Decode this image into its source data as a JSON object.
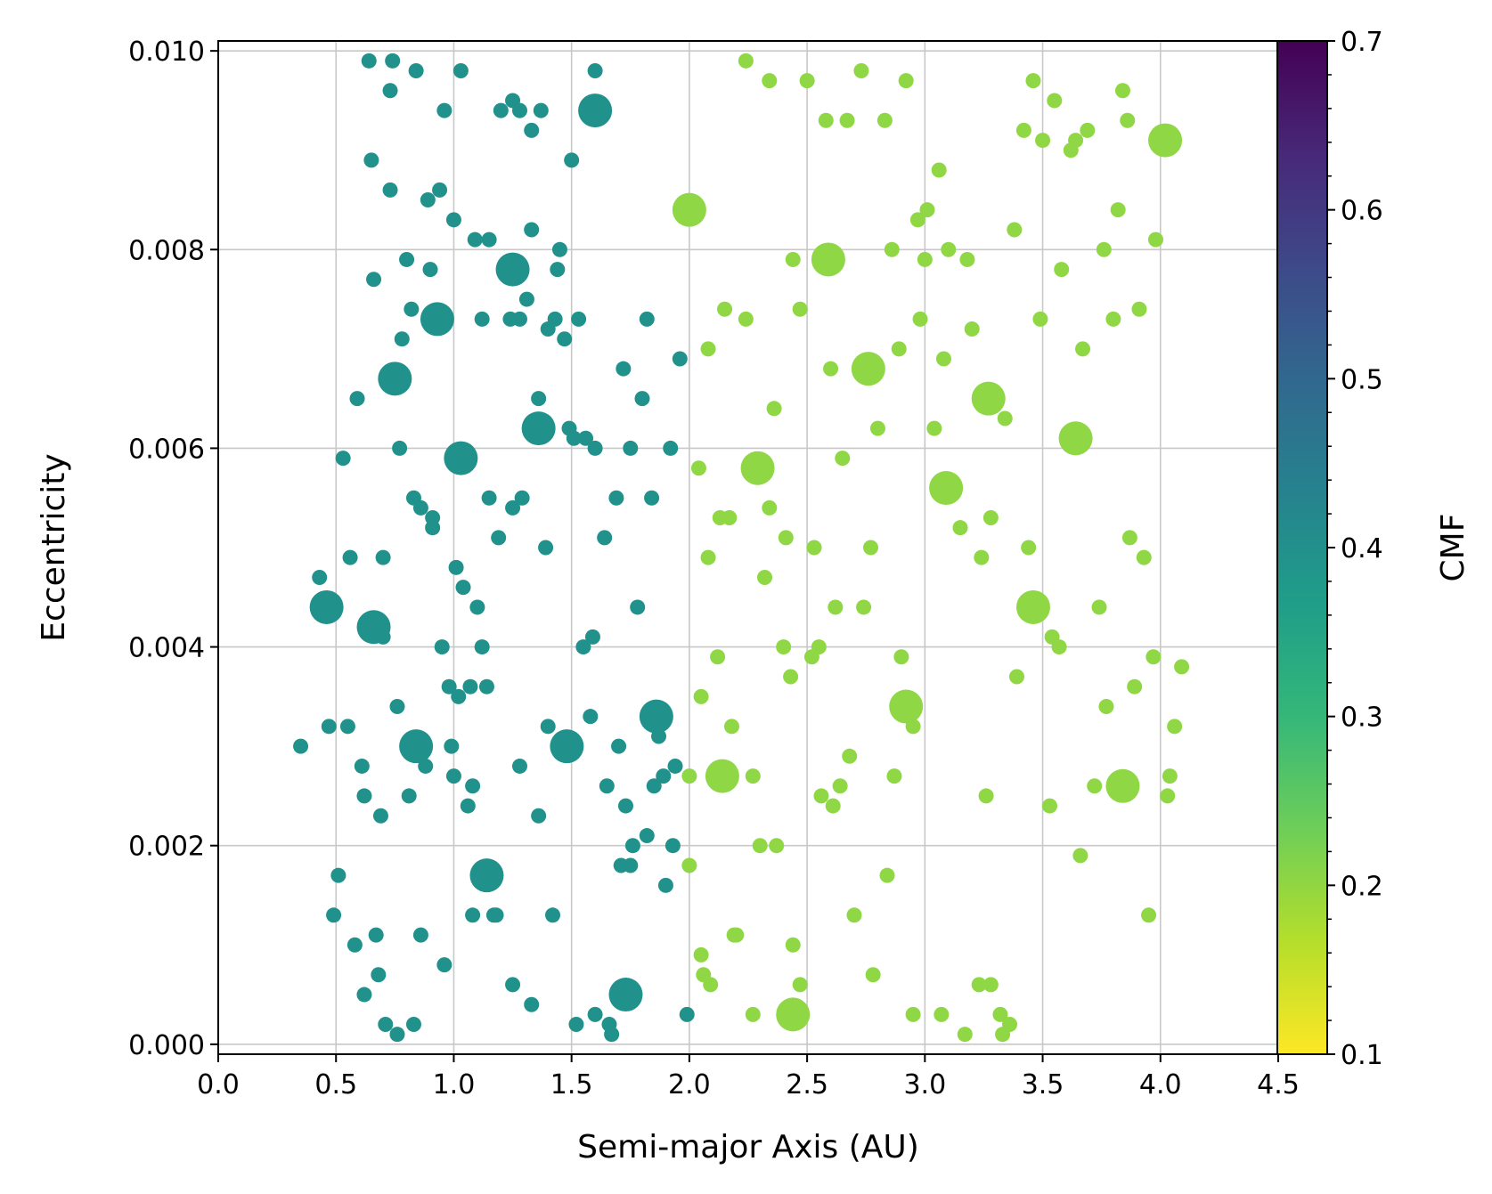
{
  "chart_data": {
    "type": "scatter",
    "title": "",
    "xlabel": "Semi-major Axis (AU)",
    "ylabel": "Eccentricity",
    "xlim": [
      0.0,
      4.5
    ],
    "ylim": [
      -0.0001,
      0.0101
    ],
    "xticks": [
      "0.0",
      "0.5",
      "1.0",
      "1.5",
      "2.0",
      "2.5",
      "3.0",
      "3.5",
      "4.0",
      "4.5"
    ],
    "yticks": [
      "0.000",
      "0.002",
      "0.004",
      "0.006",
      "0.008",
      "0.010"
    ],
    "grid": true,
    "colorbar": {
      "label": "CMF",
      "range": [
        0.1,
        0.7
      ],
      "ticks": [
        "0.1",
        "0.2",
        "0.3",
        "0.4",
        "0.5",
        "0.6",
        "0.7"
      ],
      "colormap": "viridis_r",
      "stops": [
        "#fde725",
        "#b5de2b",
        "#6ece58",
        "#35b779",
        "#1f9e89",
        "#26828e",
        "#31688e",
        "#3e4989",
        "#482878",
        "#440154"
      ]
    },
    "series": [
      {
        "cmf": 0.38,
        "color": "#21918c",
        "points_small": [
          [
            0.64,
            0.0099
          ],
          [
            0.74,
            0.0099
          ],
          [
            0.84,
            0.0098
          ],
          [
            1.03,
            0.0098
          ],
          [
            1.6,
            0.0098
          ],
          [
            0.73,
            0.0096
          ],
          [
            1.2,
            0.0094
          ],
          [
            1.25,
            0.0095
          ],
          [
            1.28,
            0.0094
          ],
          [
            0.96,
            0.0094
          ],
          [
            1.37,
            0.0094
          ],
          [
            1.33,
            0.0092
          ],
          [
            1.5,
            0.0089
          ],
          [
            0.65,
            0.0089
          ],
          [
            0.73,
            0.0086
          ],
          [
            0.94,
            0.0086
          ],
          [
            0.89,
            0.0085
          ],
          [
            1.0,
            0.0083
          ],
          [
            1.15,
            0.0081
          ],
          [
            1.33,
            0.0082
          ],
          [
            1.09,
            0.0081
          ],
          [
            1.45,
            0.008
          ],
          [
            0.8,
            0.0079
          ],
          [
            0.9,
            0.0078
          ],
          [
            1.44,
            0.0078
          ],
          [
            0.66,
            0.0077
          ],
          [
            1.31,
            0.0075
          ],
          [
            0.82,
            0.0074
          ],
          [
            1.12,
            0.0073
          ],
          [
            1.24,
            0.0073
          ],
          [
            1.28,
            0.0073
          ],
          [
            1.53,
            0.0073
          ],
          [
            1.82,
            0.0073
          ],
          [
            1.4,
            0.0072
          ],
          [
            1.43,
            0.0073
          ],
          [
            1.47,
            0.0071
          ],
          [
            0.78,
            0.0071
          ],
          [
            1.96,
            0.0069
          ],
          [
            1.72,
            0.0068
          ],
          [
            0.59,
            0.0065
          ],
          [
            1.36,
            0.0065
          ],
          [
            1.8,
            0.0065
          ],
          [
            1.49,
            0.0062
          ],
          [
            1.51,
            0.0061
          ],
          [
            1.56,
            0.0061
          ],
          [
            1.6,
            0.006
          ],
          [
            1.75,
            0.006
          ],
          [
            1.92,
            0.006
          ],
          [
            0.53,
            0.0059
          ],
          [
            0.77,
            0.006
          ],
          [
            0.83,
            0.0055
          ],
          [
            0.86,
            0.0054
          ],
          [
            0.91,
            0.0053
          ],
          [
            1.15,
            0.0055
          ],
          [
            1.25,
            0.0054
          ],
          [
            1.29,
            0.0055
          ],
          [
            1.69,
            0.0055
          ],
          [
            1.84,
            0.0055
          ],
          [
            1.19,
            0.0051
          ],
          [
            0.91,
            0.0052
          ],
          [
            1.39,
            0.005
          ],
          [
            1.64,
            0.0051
          ],
          [
            0.56,
            0.0049
          ],
          [
            0.7,
            0.0049
          ],
          [
            1.01,
            0.0048
          ],
          [
            0.43,
            0.0047
          ],
          [
            1.04,
            0.0046
          ],
          [
            1.1,
            0.0044
          ],
          [
            1.78,
            0.0044
          ],
          [
            1.59,
            0.0041
          ],
          [
            0.7,
            0.0041
          ],
          [
            1.12,
            0.004
          ],
          [
            1.55,
            0.004
          ],
          [
            0.95,
            0.004
          ],
          [
            0.98,
            0.0036
          ],
          [
            1.07,
            0.0036
          ],
          [
            1.14,
            0.0036
          ],
          [
            1.02,
            0.0035
          ],
          [
            0.76,
            0.0034
          ],
          [
            1.58,
            0.0033
          ],
          [
            0.47,
            0.0032
          ],
          [
            0.55,
            0.0032
          ],
          [
            1.4,
            0.0032
          ],
          [
            1.87,
            0.0031
          ],
          [
            0.35,
            0.003
          ],
          [
            0.99,
            0.003
          ],
          [
            1.7,
            0.003
          ],
          [
            0.61,
            0.0028
          ],
          [
            0.88,
            0.0028
          ],
          [
            1.28,
            0.0028
          ],
          [
            1.94,
            0.0028
          ],
          [
            1.0,
            0.0027
          ],
          [
            1.89,
            0.0027
          ],
          [
            1.08,
            0.0026
          ],
          [
            1.65,
            0.0026
          ],
          [
            1.85,
            0.0026
          ],
          [
            0.62,
            0.0025
          ],
          [
            0.81,
            0.0025
          ],
          [
            1.06,
            0.0024
          ],
          [
            1.73,
            0.0024
          ],
          [
            0.69,
            0.0023
          ],
          [
            1.36,
            0.0023
          ],
          [
            1.82,
            0.0021
          ],
          [
            1.76,
            0.002
          ],
          [
            1.93,
            0.002
          ],
          [
            1.71,
            0.0018
          ],
          [
            1.75,
            0.0018
          ],
          [
            0.51,
            0.0017
          ],
          [
            1.9,
            0.0016
          ],
          [
            0.49,
            0.0013
          ],
          [
            1.08,
            0.0013
          ],
          [
            1.17,
            0.0013
          ],
          [
            1.18,
            0.0013
          ],
          [
            1.42,
            0.0013
          ],
          [
            0.86,
            0.0011
          ],
          [
            0.67,
            0.0011
          ],
          [
            0.58,
            0.001
          ],
          [
            0.96,
            0.0008
          ],
          [
            0.68,
            0.0007
          ],
          [
            1.25,
            0.0006
          ],
          [
            0.62,
            0.0005
          ],
          [
            1.33,
            0.0004
          ],
          [
            1.6,
            0.0003
          ],
          [
            1.99,
            0.0003
          ],
          [
            1.66,
            0.0002
          ],
          [
            1.67,
            0.0001
          ],
          [
            0.71,
            0.0002
          ],
          [
            0.83,
            0.0002
          ],
          [
            1.52,
            0.0002
          ],
          [
            0.76,
            0.0001
          ]
        ],
        "points_large": [
          [
            1.6,
            0.0094
          ],
          [
            1.25,
            0.0078
          ],
          [
            0.93,
            0.0073
          ],
          [
            0.75,
            0.0067
          ],
          [
            1.36,
            0.0062
          ],
          [
            1.03,
            0.0059
          ],
          [
            0.46,
            0.0044
          ],
          [
            0.66,
            0.0042
          ],
          [
            1.86,
            0.0033
          ],
          [
            0.84,
            0.003
          ],
          [
            1.48,
            0.003
          ],
          [
            1.14,
            0.0017
          ],
          [
            1.73,
            0.0005
          ]
        ]
      },
      {
        "cmf": 0.22,
        "color": "#8fd744",
        "points_small": [
          [
            2.24,
            0.0099
          ],
          [
            2.34,
            0.0097
          ],
          [
            2.5,
            0.0097
          ],
          [
            2.73,
            0.0098
          ],
          [
            2.92,
            0.0097
          ],
          [
            3.46,
            0.0097
          ],
          [
            3.55,
            0.0095
          ],
          [
            3.84,
            0.0096
          ],
          [
            2.58,
            0.0093
          ],
          [
            2.67,
            0.0093
          ],
          [
            2.83,
            0.0093
          ],
          [
            3.42,
            0.0092
          ],
          [
            3.5,
            0.0091
          ],
          [
            3.62,
            0.009
          ],
          [
            3.64,
            0.0091
          ],
          [
            3.69,
            0.0092
          ],
          [
            3.86,
            0.0093
          ],
          [
            3.06,
            0.0088
          ],
          [
            3.01,
            0.0084
          ],
          [
            3.82,
            0.0084
          ],
          [
            2.97,
            0.0083
          ],
          [
            3.38,
            0.0082
          ],
          [
            2.86,
            0.008
          ],
          [
            3.1,
            0.008
          ],
          [
            3.76,
            0.008
          ],
          [
            3.98,
            0.0081
          ],
          [
            2.44,
            0.0079
          ],
          [
            3.0,
            0.0079
          ],
          [
            3.18,
            0.0079
          ],
          [
            3.58,
            0.0078
          ],
          [
            2.15,
            0.0074
          ],
          [
            2.24,
            0.0073
          ],
          [
            2.47,
            0.0074
          ],
          [
            2.98,
            0.0073
          ],
          [
            3.91,
            0.0074
          ],
          [
            3.8,
            0.0073
          ],
          [
            3.2,
            0.0072
          ],
          [
            3.49,
            0.0073
          ],
          [
            2.08,
            0.007
          ],
          [
            2.89,
            0.007
          ],
          [
            3.67,
            0.007
          ],
          [
            3.08,
            0.0069
          ],
          [
            2.6,
            0.0068
          ],
          [
            2.36,
            0.0064
          ],
          [
            2.8,
            0.0062
          ],
          [
            3.04,
            0.0062
          ],
          [
            3.34,
            0.0063
          ],
          [
            2.04,
            0.0058
          ],
          [
            2.65,
            0.0059
          ],
          [
            2.34,
            0.0054
          ],
          [
            3.28,
            0.0053
          ],
          [
            3.15,
            0.0052
          ],
          [
            2.13,
            0.0053
          ],
          [
            2.17,
            0.0053
          ],
          [
            2.41,
            0.0051
          ],
          [
            2.53,
            0.005
          ],
          [
            2.77,
            0.005
          ],
          [
            3.44,
            0.005
          ],
          [
            3.87,
            0.0051
          ],
          [
            2.08,
            0.0049
          ],
          [
            3.24,
            0.0049
          ],
          [
            3.93,
            0.0049
          ],
          [
            2.32,
            0.0047
          ],
          [
            2.62,
            0.0044
          ],
          [
            2.74,
            0.0044
          ],
          [
            3.74,
            0.0044
          ],
          [
            3.54,
            0.0041
          ],
          [
            2.55,
            0.004
          ],
          [
            3.57,
            0.004
          ],
          [
            2.52,
            0.0039
          ],
          [
            2.4,
            0.004
          ],
          [
            2.12,
            0.0039
          ],
          [
            2.9,
            0.0039
          ],
          [
            3.97,
            0.0039
          ],
          [
            4.09,
            0.0038
          ],
          [
            2.43,
            0.0037
          ],
          [
            3.39,
            0.0037
          ],
          [
            3.89,
            0.0036
          ],
          [
            2.05,
            0.0035
          ],
          [
            3.77,
            0.0034
          ],
          [
            2.18,
            0.0032
          ],
          [
            2.95,
            0.0032
          ],
          [
            4.06,
            0.0032
          ],
          [
            2.68,
            0.0029
          ],
          [
            2.87,
            0.0027
          ],
          [
            2.27,
            0.0027
          ],
          [
            2.0,
            0.0027
          ],
          [
            4.04,
            0.0027
          ],
          [
            2.64,
            0.0026
          ],
          [
            3.72,
            0.0026
          ],
          [
            2.56,
            0.0025
          ],
          [
            2.61,
            0.0024
          ],
          [
            3.26,
            0.0025
          ],
          [
            4.03,
            0.0025
          ],
          [
            3.53,
            0.0024
          ],
          [
            2.3,
            0.002
          ],
          [
            2.37,
            0.002
          ],
          [
            3.66,
            0.0019
          ],
          [
            2.0,
            0.0018
          ],
          [
            2.84,
            0.0017
          ],
          [
            2.7,
            0.0013
          ],
          [
            3.95,
            0.0013
          ],
          [
            2.19,
            0.0011
          ],
          [
            2.2,
            0.0011
          ],
          [
            2.44,
            0.001
          ],
          [
            2.05,
            0.0009
          ],
          [
            2.78,
            0.0007
          ],
          [
            2.06,
            0.0007
          ],
          [
            2.09,
            0.0006
          ],
          [
            2.47,
            0.0006
          ],
          [
            3.23,
            0.0006
          ],
          [
            3.28,
            0.0006
          ],
          [
            2.27,
            0.0003
          ],
          [
            2.95,
            0.0003
          ],
          [
            3.07,
            0.0003
          ],
          [
            3.32,
            0.0003
          ],
          [
            3.36,
            0.0002
          ],
          [
            3.33,
            0.0001
          ],
          [
            3.17,
            0.0001
          ]
        ],
        "points_large": [
          [
            4.02,
            0.0091
          ],
          [
            2.0,
            0.0084
          ],
          [
            2.59,
            0.0079
          ],
          [
            2.76,
            0.0068
          ],
          [
            3.27,
            0.0065
          ],
          [
            3.64,
            0.0061
          ],
          [
            2.29,
            0.0058
          ],
          [
            3.09,
            0.0056
          ],
          [
            3.46,
            0.0044
          ],
          [
            2.92,
            0.0034
          ],
          [
            2.14,
            0.0027
          ],
          [
            3.84,
            0.0026
          ],
          [
            2.44,
            0.0003
          ]
        ]
      }
    ]
  }
}
